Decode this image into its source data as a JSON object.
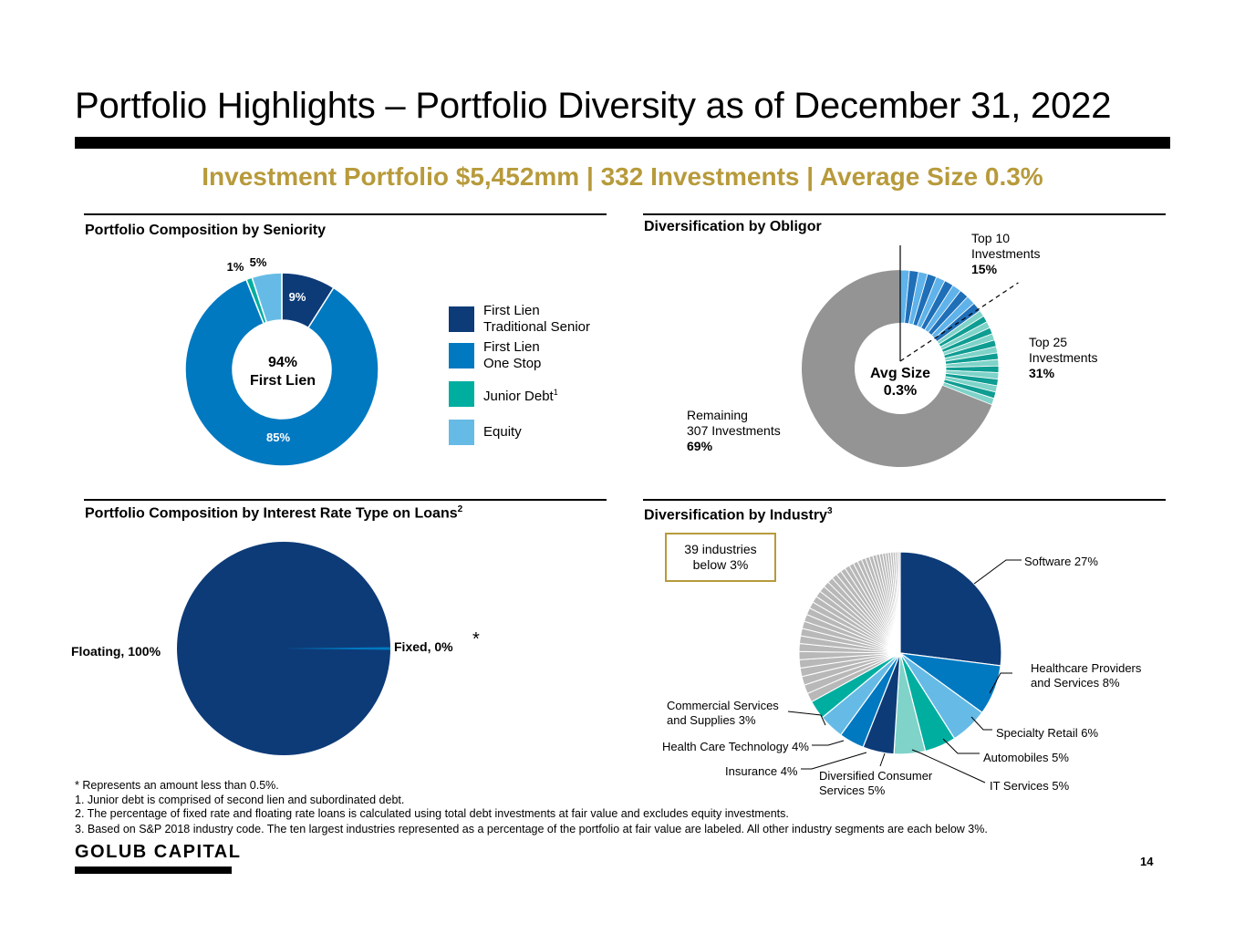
{
  "title": "Portfolio Highlights – Portfolio Diversity as of December 31, 2022",
  "headline": "Investment Portfolio $5,452mm |  332 Investments | Average Size 0.3%",
  "colors": {
    "gold": "#b79a3b",
    "first_lien_traditional": "#0d3b78",
    "first_lien_one_stop": "#0079c1",
    "junior_debt": "#00aea0",
    "equity": "#66bbe6",
    "remaining_gray": "#949494"
  },
  "seniority": {
    "title": "Portfolio Composition by Seniority",
    "center_label": "94%\nFirst Lien",
    "legend": [
      {
        "label": "First Lien\nTraditional Senior",
        "color": "#0d3b78"
      },
      {
        "label": "First Lien\nOne Stop",
        "color": "#0079c1"
      },
      {
        "label": "Junior Debt",
        "sup": "1",
        "color": "#00aea0"
      },
      {
        "label": "Equity",
        "color": "#66bbe6"
      }
    ]
  },
  "obligor": {
    "title": "Diversification by Obligor",
    "center_label": "Avg Size\n0.3%",
    "top10": {
      "label": "Top 10\nInvestments",
      "value": "15%"
    },
    "top25": {
      "label": "Top 25\nInvestments",
      "value": "31%"
    },
    "remaining": {
      "label": "Remaining\n307 Investments",
      "value": "69%"
    }
  },
  "interest": {
    "title": "Portfolio Composition by Interest Rate Type on Loans",
    "title_sup": "2",
    "asterisk": "*"
  },
  "industry": {
    "title": "Diversification by Industry",
    "title_sup": "3",
    "box_label": "39 industries\nbelow 3%"
  },
  "footnotes": [
    "* Represents an amount less than 0.5%.",
    "1.  Junior debt is comprised of second lien and subordinated debt.",
    "2.  The percentage of fixed rate and floating rate loans is calculated using total debt investments at fair value and excludes equity investments.",
    "3. Based on S&P 2018 industry code. The ten largest industries represented as a percentage of the portfolio at fair value are labeled. All other industry segments are each below 3%."
  ],
  "logo": "GOLUB CAPITAL",
  "page_number": "14",
  "chart_data": [
    {
      "type": "pie",
      "title": "Portfolio Composition by Seniority",
      "series": [
        {
          "name": "First Lien Traditional Senior",
          "value": 9,
          "label": "9%"
        },
        {
          "name": "First Lien One Stop",
          "value": 85,
          "label": "85%"
        },
        {
          "name": "Junior Debt",
          "value": 1,
          "label": "1%"
        },
        {
          "name": "Equity",
          "value": 5,
          "label": "5%"
        }
      ]
    },
    {
      "type": "pie",
      "title": "Diversification by Obligor",
      "series": [
        {
          "name": "Top 10 Investments",
          "value": 15
        },
        {
          "name": "Top 25 Investments",
          "value": 16
        },
        {
          "name": "Remaining 307 Investments",
          "value": 69
        }
      ]
    },
    {
      "type": "pie",
      "title": "Portfolio Composition by Interest Rate Type on Loans",
      "series": [
        {
          "name": "Floating",
          "value": 100,
          "label": "Floating, 100%"
        },
        {
          "name": "Fixed",
          "value": 0.4,
          "label": "Fixed, 0%"
        }
      ]
    },
    {
      "type": "pie",
      "title": "Diversification by Industry",
      "series": [
        {
          "name": "Software",
          "value": 27,
          "label": "Software 27%",
          "color": "#0d3b78"
        },
        {
          "name": "Healthcare Providers and Services",
          "value": 8,
          "label": "Healthcare Providers\nand Services 8%",
          "color": "#0079c1"
        },
        {
          "name": "Specialty Retail",
          "value": 6,
          "label": "Specialty Retail 6%",
          "color": "#66bbe6"
        },
        {
          "name": "Automobiles",
          "value": 5,
          "label": "Automobiles 5%",
          "color": "#00aea0"
        },
        {
          "name": "IT Services",
          "value": 5,
          "label": "IT Services 5%",
          "color": "#7fd3c9"
        },
        {
          "name": "Diversified Consumer Services",
          "value": 5,
          "label": "Diversified Consumer\nServices 5%",
          "color": "#0d3b78"
        },
        {
          "name": "Insurance",
          "value": 4,
          "label": "Insurance 4%",
          "color": "#0079c1"
        },
        {
          "name": "Health Care Technology",
          "value": 4,
          "label": "Health Care Technology 4%",
          "color": "#66bbe6"
        },
        {
          "name": "Commercial Services and Supplies",
          "value": 3,
          "label": "Commercial Services\nand Supplies 3%",
          "color": "#00aea0"
        },
        {
          "name": "39 industries below 3%",
          "value": 33,
          "segments": 39,
          "color": "#b8b8b8"
        }
      ]
    }
  ]
}
